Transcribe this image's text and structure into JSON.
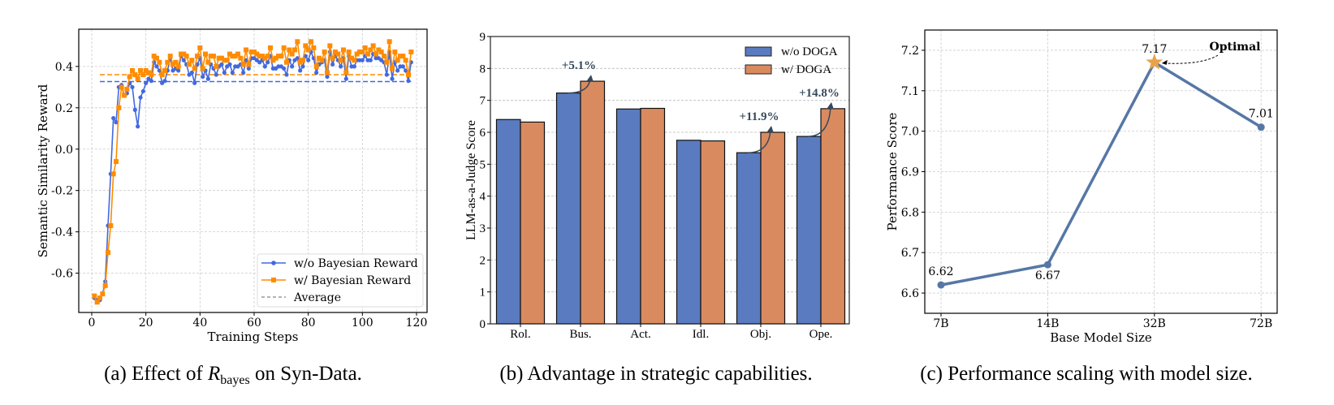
{
  "captions": {
    "a": {
      "prefix": "(a) Effect of ",
      "symbol": "R",
      "subscript": "bayes",
      "suffix": " on Syn-Data."
    },
    "b": "(b) Advantage in strategic capabilities.",
    "c": "(c) Performance scaling with model size."
  },
  "chart_data": [
    {
      "type": "line",
      "xlabel": "Training Steps",
      "ylabel": "Semantic Similarity Reward",
      "xlim": [
        -4.8,
        123.9
      ],
      "ylim": [
        -0.79,
        0.58
      ],
      "xticks": [
        0,
        20,
        40,
        60,
        80,
        100,
        120
      ],
      "yticks": [
        -0.6,
        -0.4,
        -0.2,
        0.0,
        0.2,
        0.4
      ],
      "ytick_labels": [
        "-0.6",
        "-0.4",
        "-0.2",
        "0.0",
        "0.2",
        "0.4"
      ],
      "grid": true,
      "legend_position": "lower-right",
      "x": [
        1,
        2,
        3,
        4,
        5,
        6,
        7,
        8,
        9,
        10,
        11,
        12,
        13,
        14,
        15,
        16,
        17,
        18,
        19,
        20,
        21,
        22,
        23,
        24,
        25,
        26,
        27,
        28,
        29,
        30,
        31,
        32,
        33,
        34,
        35,
        36,
        37,
        38,
        39,
        40,
        41,
        42,
        43,
        44,
        45,
        46,
        47,
        48,
        49,
        50,
        51,
        52,
        53,
        54,
        55,
        56,
        57,
        58,
        59,
        60,
        61,
        62,
        63,
        64,
        65,
        66,
        67,
        68,
        69,
        70,
        71,
        72,
        73,
        74,
        75,
        76,
        77,
        78,
        79,
        80,
        81,
        82,
        83,
        84,
        85,
        86,
        87,
        88,
        89,
        90,
        91,
        92,
        93,
        94,
        95,
        96,
        97,
        98,
        99,
        100,
        101,
        102,
        103,
        104,
        105,
        106,
        107,
        108,
        109,
        110,
        111,
        112,
        113,
        114,
        115,
        116,
        117,
        118
      ],
      "series": [
        {
          "name": "w/o Bayesian Reward",
          "color": "#4169e1",
          "marker": "circle",
          "average": 0.327,
          "values": [
            -0.72,
            -0.73,
            -0.73,
            -0.7,
            -0.64,
            -0.37,
            -0.12,
            0.15,
            0.13,
            0.3,
            0.31,
            0.26,
            0.27,
            0.32,
            0.3,
            0.19,
            0.11,
            0.25,
            0.28,
            0.32,
            0.34,
            0.33,
            0.42,
            0.4,
            0.38,
            0.32,
            0.33,
            0.38,
            0.44,
            0.38,
            0.39,
            0.38,
            0.45,
            0.43,
            0.41,
            0.36,
            0.37,
            0.32,
            0.41,
            0.44,
            0.35,
            0.38,
            0.34,
            0.41,
            0.39,
            0.36,
            0.4,
            0.41,
            0.37,
            0.4,
            0.41,
            0.37,
            0.4,
            0.4,
            0.41,
            0.37,
            0.43,
            0.39,
            0.44,
            0.44,
            0.43,
            0.42,
            0.43,
            0.4,
            0.42,
            0.45,
            0.39,
            0.39,
            0.4,
            0.4,
            0.39,
            0.36,
            0.43,
            0.4,
            0.43,
            0.44,
            0.38,
            0.4,
            0.45,
            0.43,
            0.47,
            0.44,
            0.37,
            0.41,
            0.42,
            0.43,
            0.35,
            0.47,
            0.41,
            0.45,
            0.43,
            0.4,
            0.44,
            0.34,
            0.45,
            0.4,
            0.4,
            0.43,
            0.43,
            0.43,
            0.45,
            0.43,
            0.43,
            0.46,
            0.44,
            0.44,
            0.43,
            0.42,
            0.36,
            0.47,
            0.34,
            0.42,
            0.38,
            0.4,
            0.4,
            0.38,
            0.33,
            0.42
          ]
        },
        {
          "name": "w/ Bayesian Reward",
          "color": "#ff8c00",
          "marker": "square",
          "average": 0.36,
          "values": [
            -0.71,
            -0.74,
            -0.72,
            -0.7,
            -0.66,
            -0.5,
            -0.37,
            -0.12,
            -0.06,
            0.2,
            0.3,
            0.26,
            0.29,
            0.35,
            0.38,
            0.36,
            0.34,
            0.38,
            0.36,
            0.38,
            0.37,
            0.36,
            0.45,
            0.44,
            0.42,
            0.36,
            0.38,
            0.42,
            0.45,
            0.41,
            0.42,
            0.4,
            0.46,
            0.46,
            0.45,
            0.41,
            0.43,
            0.39,
            0.45,
            0.49,
            0.39,
            0.46,
            0.42,
            0.45,
            0.45,
            0.4,
            0.44,
            0.44,
            0.43,
            0.43,
            0.46,
            0.45,
            0.45,
            0.46,
            0.44,
            0.41,
            0.48,
            0.41,
            0.47,
            0.47,
            0.46,
            0.45,
            0.45,
            0.44,
            0.45,
            0.49,
            0.43,
            0.44,
            0.45,
            0.45,
            0.49,
            0.42,
            0.48,
            0.46,
            0.48,
            0.52,
            0.42,
            0.43,
            0.5,
            0.48,
            0.52,
            0.49,
            0.4,
            0.44,
            0.43,
            0.47,
            0.37,
            0.5,
            0.44,
            0.47,
            0.46,
            0.43,
            0.48,
            0.37,
            0.47,
            0.44,
            0.43,
            0.46,
            0.47,
            0.47,
            0.49,
            0.46,
            0.48,
            0.5,
            0.46,
            0.48,
            0.47,
            0.45,
            0.42,
            0.52,
            0.39,
            0.47,
            0.43,
            0.45,
            0.45,
            0.43,
            0.36,
            0.47
          ]
        }
      ],
      "legend_extra": "Average"
    },
    {
      "type": "bar",
      "ylabel": "LLM-as-a-Judge Score",
      "categories": [
        "Rol.",
        "Bus.",
        "Act.",
        "Idl.",
        "Obj.",
        "Ope."
      ],
      "ylim": [
        0,
        9
      ],
      "yticks": [
        0,
        1,
        2,
        3,
        4,
        5,
        6,
        7,
        8,
        9
      ],
      "grid": "y",
      "legend_position": "top-right",
      "series": [
        {
          "name": "w/o DOGA",
          "color": "#5a7bbf",
          "values": [
            6.4,
            7.23,
            6.73,
            5.75,
            5.36,
            5.87
          ]
        },
        {
          "name": "w/ DOGA",
          "color": "#d98b5f",
          "values": [
            6.32,
            7.6,
            6.75,
            5.73,
            6.0,
            6.74
          ]
        }
      ],
      "annotations": [
        {
          "category": "Bus.",
          "text": "+5.1%"
        },
        {
          "category": "Obj.",
          "text": "+11.9%"
        },
        {
          "category": "Ope.",
          "text": "+14.8%"
        }
      ]
    },
    {
      "type": "line",
      "xlabel": "Base Model Size",
      "ylabel": "Performance Score",
      "categories": [
        "7B",
        "14B",
        "32B",
        "72B"
      ],
      "values": [
        6.62,
        6.67,
        7.17,
        7.01
      ],
      "point_labels": [
        "6.62",
        "6.67",
        "7.17",
        "7.01"
      ],
      "ylim": [
        6.55,
        7.25
      ],
      "yticks": [
        6.6,
        6.7,
        6.8,
        6.9,
        7.0,
        7.1,
        7.2
      ],
      "ytick_labels": [
        "6.6",
        "6.7",
        "6.8",
        "6.9",
        "7.0",
        "7.1",
        "7.2"
      ],
      "grid": true,
      "color": "#5677a6",
      "highlight_color": "#e8a24a",
      "highlight_index": 2,
      "annotation": "Optimal"
    }
  ]
}
